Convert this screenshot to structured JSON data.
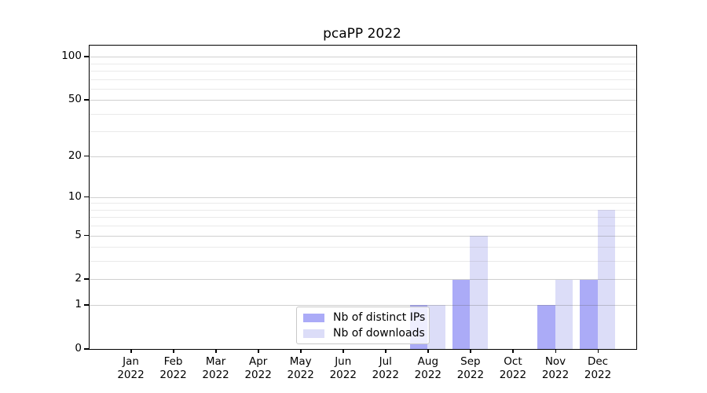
{
  "figure": {
    "title": "pcaPP 2022",
    "background_color": "#ffffff"
  },
  "chart_data": {
    "type": "bar",
    "title": "pcaPP 2022",
    "x_categories": [
      {
        "month": "Jan",
        "year": "2022"
      },
      {
        "month": "Feb",
        "year": "2022"
      },
      {
        "month": "Mar",
        "year": "2022"
      },
      {
        "month": "Apr",
        "year": "2022"
      },
      {
        "month": "May",
        "year": "2022"
      },
      {
        "month": "Jun",
        "year": "2022"
      },
      {
        "month": "Jul",
        "year": "2022"
      },
      {
        "month": "Aug",
        "year": "2022"
      },
      {
        "month": "Sep",
        "year": "2022"
      },
      {
        "month": "Oct",
        "year": "2022"
      },
      {
        "month": "Nov",
        "year": "2022"
      },
      {
        "month": "Dec",
        "year": "2022"
      }
    ],
    "series": [
      {
        "name": "Nb of distinct IPs",
        "color": "#ababf7",
        "values": [
          0,
          0,
          0,
          0,
          0,
          0,
          0,
          1,
          2,
          0,
          1,
          2
        ]
      },
      {
        "name": "Nb of downloads",
        "color": "#dcddf8",
        "values": [
          0,
          0,
          0,
          0,
          0,
          0,
          0,
          1,
          5,
          0,
          2,
          8
        ]
      }
    ],
    "y_scale": "log1p",
    "ylim": [
      0,
      119
    ],
    "y_major_ticks": [
      0,
      1,
      2,
      5,
      10,
      20,
      50,
      100
    ],
    "y_minor_gridlines": [
      3,
      4,
      6,
      7,
      8,
      9,
      30,
      40,
      60,
      70,
      80,
      90
    ],
    "grid": "horizontal, major and minor, drawn over bars",
    "legend_position": "lower center, inside axes",
    "major_grid_color": "#d2d2d2",
    "minor_grid_color": "#ebebeb"
  }
}
